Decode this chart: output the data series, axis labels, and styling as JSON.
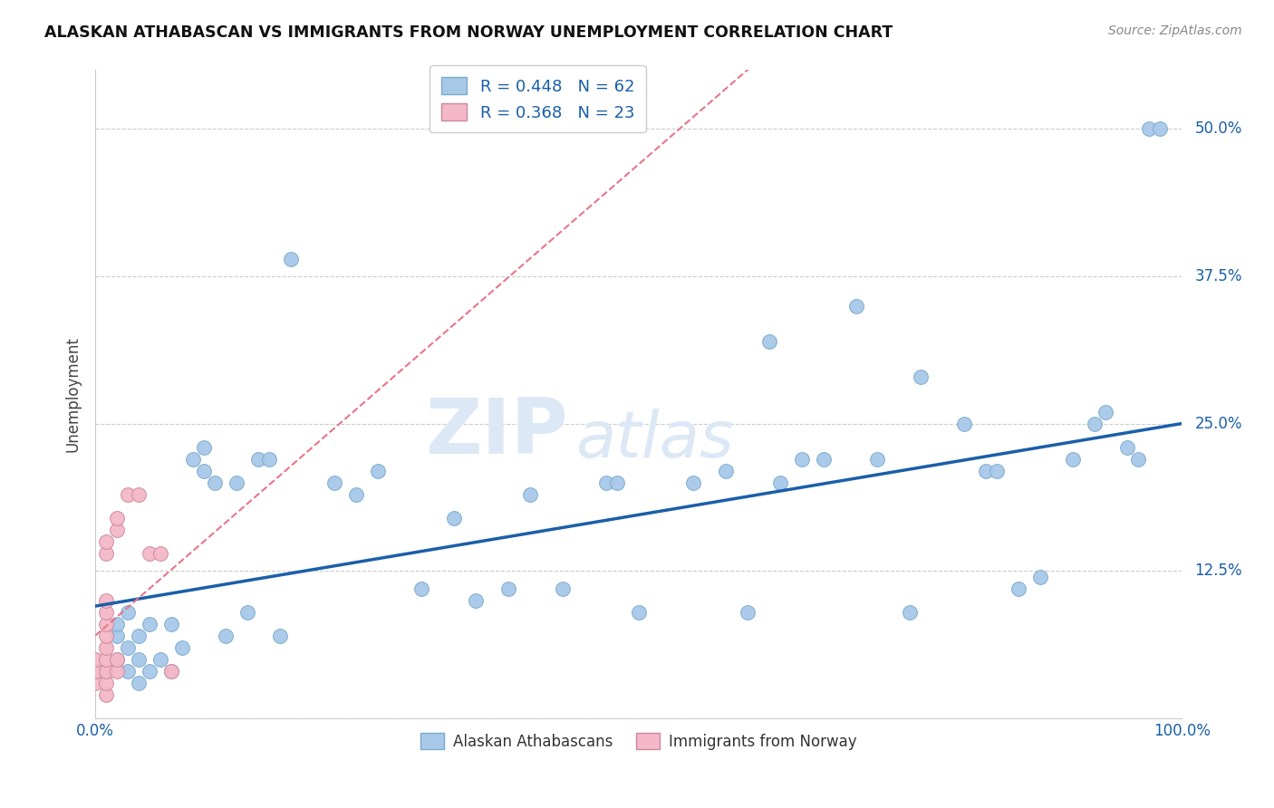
{
  "title": "ALASKAN ATHABASCAN VS IMMIGRANTS FROM NORWAY UNEMPLOYMENT CORRELATION CHART",
  "source": "Source: ZipAtlas.com",
  "ylabel": "Unemployment",
  "xlim": [
    0.0,
    1.0
  ],
  "ylim": [
    0.0,
    0.55
  ],
  "yticks": [
    0.0,
    0.125,
    0.25,
    0.375,
    0.5
  ],
  "ytick_labels": [
    "",
    "12.5%",
    "25.0%",
    "37.5%",
    "50.0%"
  ],
  "xtick_labels": [
    "0.0%",
    "100.0%"
  ],
  "blue_R": 0.448,
  "blue_N": 62,
  "pink_R": 0.368,
  "pink_N": 23,
  "blue_color": "#a8c8e8",
  "blue_line_color": "#1a5fa8",
  "pink_color": "#f4b8c8",
  "pink_line_color": "#e8758a",
  "blue_scatter": [
    [
      0.01,
      0.04
    ],
    [
      0.02,
      0.05
    ],
    [
      0.02,
      0.07
    ],
    [
      0.02,
      0.08
    ],
    [
      0.03,
      0.04
    ],
    [
      0.03,
      0.06
    ],
    [
      0.03,
      0.09
    ],
    [
      0.04,
      0.03
    ],
    [
      0.04,
      0.05
    ],
    [
      0.04,
      0.07
    ],
    [
      0.05,
      0.04
    ],
    [
      0.05,
      0.08
    ],
    [
      0.06,
      0.05
    ],
    [
      0.07,
      0.04
    ],
    [
      0.07,
      0.08
    ],
    [
      0.08,
      0.06
    ],
    [
      0.09,
      0.22
    ],
    [
      0.1,
      0.21
    ],
    [
      0.1,
      0.23
    ],
    [
      0.11,
      0.2
    ],
    [
      0.12,
      0.07
    ],
    [
      0.13,
      0.2
    ],
    [
      0.14,
      0.09
    ],
    [
      0.15,
      0.22
    ],
    [
      0.16,
      0.22
    ],
    [
      0.17,
      0.07
    ],
    [
      0.18,
      0.39
    ],
    [
      0.22,
      0.2
    ],
    [
      0.24,
      0.19
    ],
    [
      0.26,
      0.21
    ],
    [
      0.3,
      0.11
    ],
    [
      0.33,
      0.17
    ],
    [
      0.35,
      0.1
    ],
    [
      0.38,
      0.11
    ],
    [
      0.4,
      0.19
    ],
    [
      0.43,
      0.11
    ],
    [
      0.47,
      0.2
    ],
    [
      0.48,
      0.2
    ],
    [
      0.5,
      0.09
    ],
    [
      0.55,
      0.2
    ],
    [
      0.58,
      0.21
    ],
    [
      0.6,
      0.09
    ],
    [
      0.62,
      0.32
    ],
    [
      0.63,
      0.2
    ],
    [
      0.65,
      0.22
    ],
    [
      0.67,
      0.22
    ],
    [
      0.7,
      0.35
    ],
    [
      0.72,
      0.22
    ],
    [
      0.75,
      0.09
    ],
    [
      0.76,
      0.29
    ],
    [
      0.8,
      0.25
    ],
    [
      0.82,
      0.21
    ],
    [
      0.83,
      0.21
    ],
    [
      0.85,
      0.11
    ],
    [
      0.87,
      0.12
    ],
    [
      0.9,
      0.22
    ],
    [
      0.92,
      0.25
    ],
    [
      0.93,
      0.26
    ],
    [
      0.95,
      0.23
    ],
    [
      0.96,
      0.22
    ],
    [
      0.97,
      0.5
    ],
    [
      0.98,
      0.5
    ]
  ],
  "pink_scatter": [
    [
      0.0,
      0.03
    ],
    [
      0.0,
      0.04
    ],
    [
      0.0,
      0.05
    ],
    [
      0.01,
      0.02
    ],
    [
      0.01,
      0.03
    ],
    [
      0.01,
      0.04
    ],
    [
      0.01,
      0.05
    ],
    [
      0.01,
      0.06
    ],
    [
      0.01,
      0.07
    ],
    [
      0.01,
      0.08
    ],
    [
      0.01,
      0.09
    ],
    [
      0.01,
      0.1
    ],
    [
      0.01,
      0.14
    ],
    [
      0.01,
      0.15
    ],
    [
      0.02,
      0.04
    ],
    [
      0.02,
      0.05
    ],
    [
      0.02,
      0.16
    ],
    [
      0.02,
      0.17
    ],
    [
      0.03,
      0.19
    ],
    [
      0.04,
      0.19
    ],
    [
      0.05,
      0.14
    ],
    [
      0.06,
      0.14
    ],
    [
      0.07,
      0.04
    ]
  ],
  "watermark": "ZIPatlas",
  "watermark_color": "#dce8f5",
  "background_color": "#ffffff",
  "grid_color": "#cccccc"
}
